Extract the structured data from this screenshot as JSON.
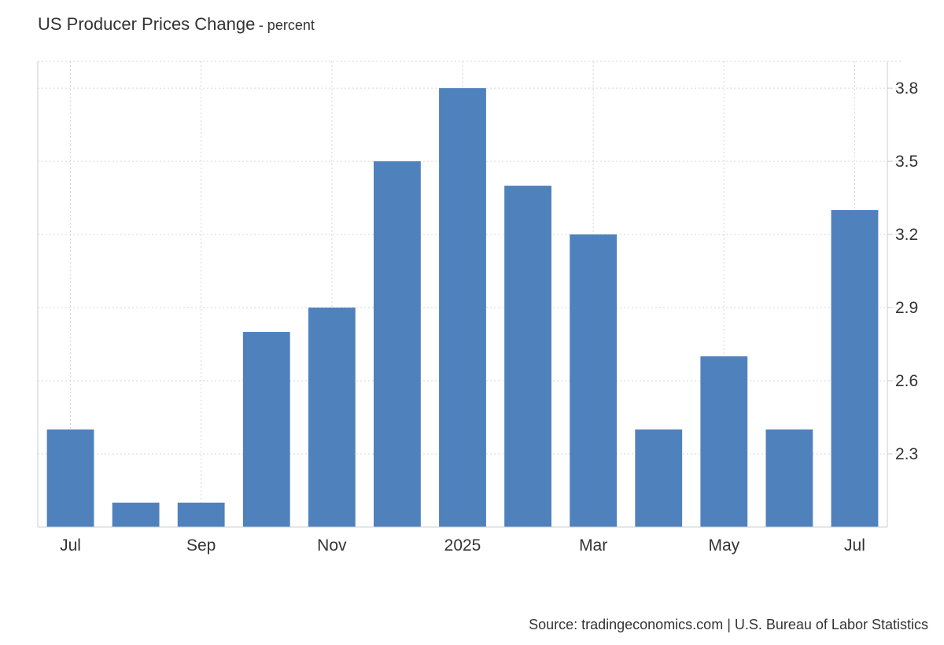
{
  "header": {
    "title": "US Producer Prices Change",
    "subtitle": "- percent"
  },
  "footer": {
    "source": "Source: tradingeconomics.com | U.S. Bureau of Labor Statistics"
  },
  "colors": {
    "bar": "#4f81bd",
    "grid": "#d6d6d6",
    "axis": "#cccccc"
  },
  "chart_data": {
    "type": "bar",
    "title": "US Producer Prices Change",
    "subtitle": "- percent",
    "categories": [
      "2024-07",
      "2024-08",
      "2024-09",
      "2024-10",
      "2024-11",
      "2024-12",
      "2025-01",
      "2025-02",
      "2025-03",
      "2025-04",
      "2025-05",
      "2025-06",
      "2025-07"
    ],
    "values": [
      2.4,
      2.1,
      2.1,
      2.8,
      2.9,
      3.5,
      3.8,
      3.4,
      3.2,
      2.4,
      2.7,
      2.4,
      3.3
    ],
    "x_tick_labels": [
      {
        "category": "2024-07",
        "label": "Jul"
      },
      {
        "category": "2024-09",
        "label": "Sep"
      },
      {
        "category": "2024-11",
        "label": "Nov"
      },
      {
        "category": "2025-01",
        "label": "2025"
      },
      {
        "category": "2025-03",
        "label": "Mar"
      },
      {
        "category": "2025-05",
        "label": "May"
      },
      {
        "category": "2025-07",
        "label": "Jul"
      }
    ],
    "y_ticks": [
      2.3,
      2.6,
      2.9,
      3.2,
      3.5,
      3.8
    ],
    "y_tick_labels": [
      "2.3",
      "2.6",
      "2.9",
      "3.2",
      "3.5",
      "3.8"
    ],
    "ylim": [
      2.0,
      3.91
    ],
    "y_axis_side": "right",
    "grid": true,
    "legend": false,
    "xlabel": "",
    "ylabel": ""
  }
}
